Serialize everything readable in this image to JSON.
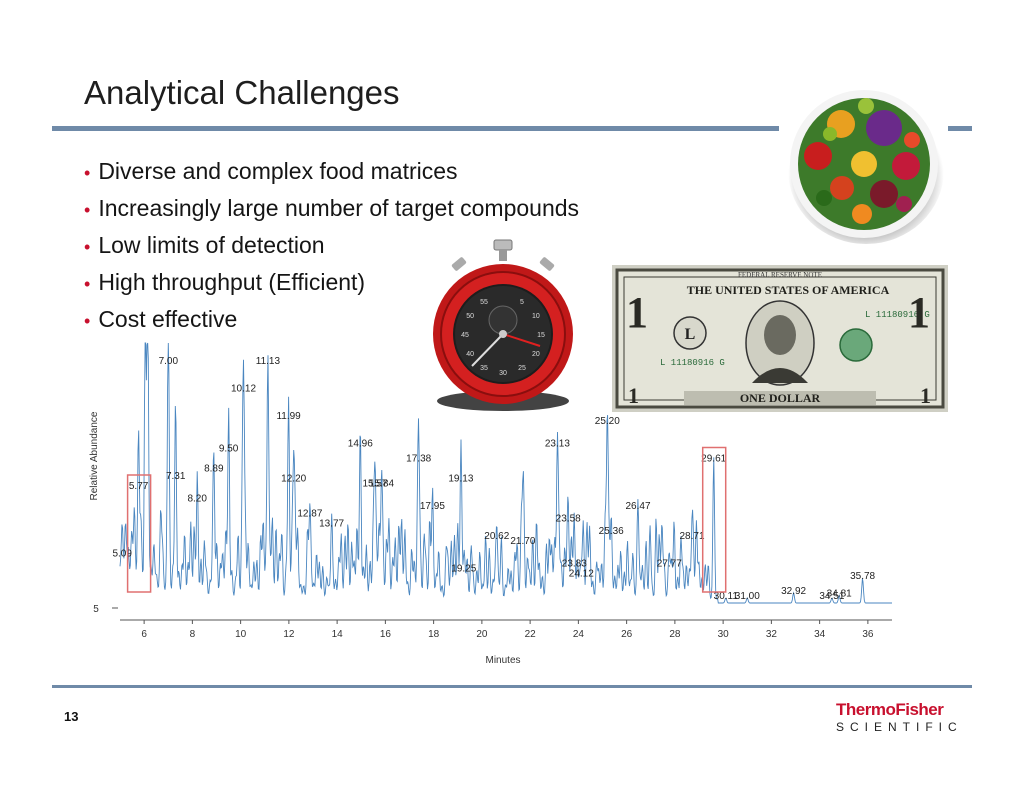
{
  "slide": {
    "title": "Analytical Challenges",
    "bullets": [
      "Diverse and complex food matrices",
      "Increasingly large number of target compounds",
      "Low limits of detection",
      "High throughput (Efficient)",
      "Cost effective"
    ],
    "page_number": "13",
    "logo": {
      "line1": "ThermoFisher",
      "line2": "SCIENTIFIC"
    },
    "accent_color": "#6f8aa8",
    "bullet_color": "#c8102e"
  },
  "images": {
    "food_bowl": "fruit-and-vegetable-bowl-image",
    "stopwatch": "red-stopwatch-image",
    "dollar": "one-dollar-bill-image"
  },
  "dollar_text": {
    "top": "FEDERAL RESERVE NOTE",
    "country": "THE UNITED STATES OF AMERICA",
    "serial": "L 11180916 G",
    "bottom": "ONE DOLLAR",
    "corner": "1",
    "seal_letter": "L"
  },
  "stopwatch_ticks": [
    "55",
    "5",
    "50",
    "10",
    "45",
    "15",
    "40",
    "20",
    "35",
    "30",
    "25"
  ],
  "chart_data": {
    "type": "line",
    "xlabel": "Minutes",
    "ylabel": "Relative Abundance",
    "xlim": [
      5,
      37
    ],
    "x_ticks": [
      "6",
      "8",
      "10",
      "12",
      "14",
      "16",
      "18",
      "20",
      "22",
      "24",
      "26",
      "28",
      "30",
      "32",
      "34",
      "36"
    ],
    "y_ticks": [
      "5"
    ],
    "highlight_boxes": [
      "5.77",
      "29.61"
    ],
    "peaks": [
      {
        "label": "5.09",
        "x": 5.09,
        "y": 0.19
      },
      {
        "label": "5.77",
        "x": 5.77,
        "y": 0.46
      },
      {
        "label": "7.00",
        "x": 7.0,
        "y": 0.96
      },
      {
        "label": "7.31",
        "x": 7.31,
        "y": 0.5
      },
      {
        "label": "8.20",
        "x": 8.2,
        "y": 0.41
      },
      {
        "label": "8.89",
        "x": 8.89,
        "y": 0.53
      },
      {
        "label": "9.50",
        "x": 9.5,
        "y": 0.61
      },
      {
        "label": "10.12",
        "x": 10.12,
        "y": 0.85
      },
      {
        "label": "11.13",
        "x": 11.13,
        "y": 0.96
      },
      {
        "label": "11.99",
        "x": 11.99,
        "y": 0.74
      },
      {
        "label": "12.20",
        "x": 12.2,
        "y": 0.49
      },
      {
        "label": "12.87",
        "x": 12.87,
        "y": 0.35
      },
      {
        "label": "13.77",
        "x": 13.77,
        "y": 0.31
      },
      {
        "label": "14.96",
        "x": 14.96,
        "y": 0.63
      },
      {
        "label": "15.57",
        "x": 15.57,
        "y": 0.47
      },
      {
        "label": "15.84",
        "x": 15.84,
        "y": 0.47
      },
      {
        "label": "17.38",
        "x": 17.38,
        "y": 0.57
      },
      {
        "label": "17.95",
        "x": 17.95,
        "y": 0.38
      },
      {
        "label": "19.13",
        "x": 19.13,
        "y": 0.49
      },
      {
        "label": "19.25",
        "x": 19.25,
        "y": 0.13
      },
      {
        "label": "20.62",
        "x": 20.62,
        "y": 0.26
      },
      {
        "label": "21.70",
        "x": 21.7,
        "y": 0.24
      },
      {
        "label": "23.13",
        "x": 23.13,
        "y": 0.63
      },
      {
        "label": "23.58",
        "x": 23.58,
        "y": 0.33
      },
      {
        "label": "23.83",
        "x": 23.83,
        "y": 0.15
      },
      {
        "label": "24.12",
        "x": 24.12,
        "y": 0.11
      },
      {
        "label": "25.20",
        "x": 25.2,
        "y": 0.72
      },
      {
        "label": "25.36",
        "x": 25.36,
        "y": 0.28
      },
      {
        "label": "26.47",
        "x": 26.47,
        "y": 0.38
      },
      {
        "label": "27.77",
        "x": 27.77,
        "y": 0.15
      },
      {
        "label": "28.71",
        "x": 28.71,
        "y": 0.26
      },
      {
        "label": "29.61",
        "x": 29.61,
        "y": 0.57
      },
      {
        "label": "30.11",
        "x": 30.11,
        "y": 0.02
      },
      {
        "label": "31.00",
        "x": 31.0,
        "y": 0.02
      },
      {
        "label": "32.92",
        "x": 32.92,
        "y": 0.04
      },
      {
        "label": "34.51",
        "x": 34.51,
        "y": 0.02
      },
      {
        "label": "34.81",
        "x": 34.81,
        "y": 0.03
      },
      {
        "label": "35.78",
        "x": 35.78,
        "y": 0.1
      }
    ]
  }
}
